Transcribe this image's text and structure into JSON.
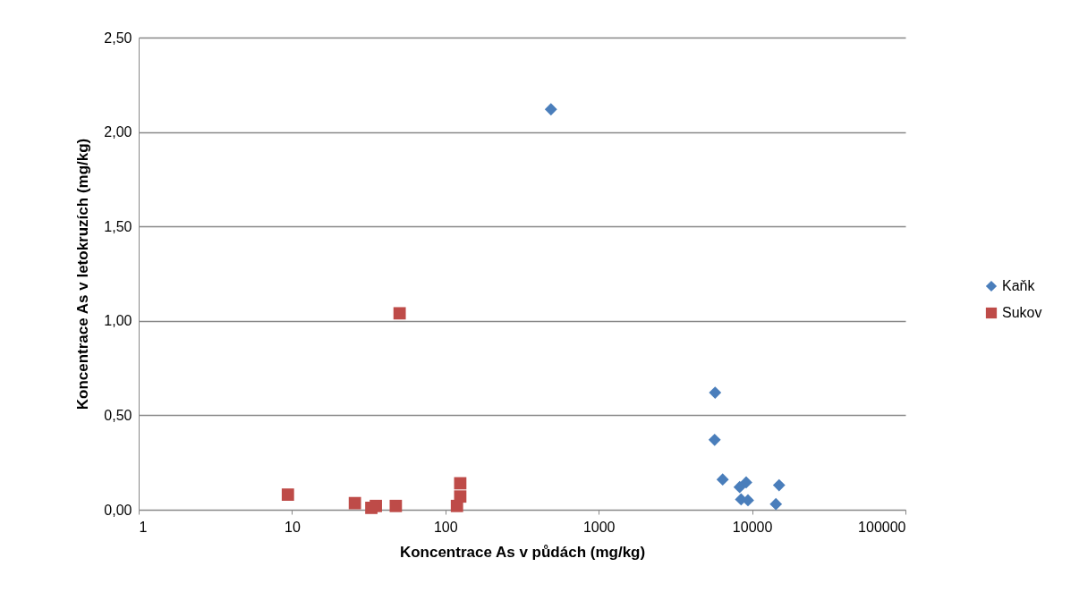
{
  "chart_data": {
    "type": "scatter",
    "xlabel": "Koncentrace As v půdách (mg/kg)",
    "ylabel": "Koncentrace As v letokruzích (mg/kg)",
    "log": "x",
    "xlim": [
      1,
      100000
    ],
    "xticks": [
      1,
      10,
      100,
      1000,
      10000,
      100000
    ],
    "ylim": [
      0,
      2.5
    ],
    "yticks": [
      {
        "value": 0,
        "label": "0,00"
      },
      {
        "value": 0.5,
        "label": "0,50"
      },
      {
        "value": 1,
        "label": "1,00"
      },
      {
        "value": 1.5,
        "label": "1,50"
      },
      {
        "value": 2,
        "label": "2,00"
      },
      {
        "value": 2.5,
        "label": "2,50"
      }
    ],
    "grid": "y",
    "legend": "right",
    "series": [
      {
        "name": "Kaňk",
        "color": "#4a7ebb",
        "marker": "diamond",
        "x": [
          488,
          5740,
          5700,
          6430,
          9150,
          8300,
          8480,
          9400,
          15000,
          14300
        ],
        "values": [
          2.12,
          0.62,
          0.37,
          0.16,
          0.145,
          0.12,
          0.055,
          0.05,
          0.13,
          0.03
        ]
      },
      {
        "name": "Sukov",
        "color": "#be4b48",
        "marker": "square",
        "x": [
          9.4,
          25.7,
          32.9,
          35.2,
          47.5,
          50.3,
          119,
          125,
          125
        ],
        "values": [
          0.08,
          0.035,
          0.01,
          0.02,
          0.02,
          1.04,
          0.02,
          0.14,
          0.07
        ]
      }
    ]
  }
}
